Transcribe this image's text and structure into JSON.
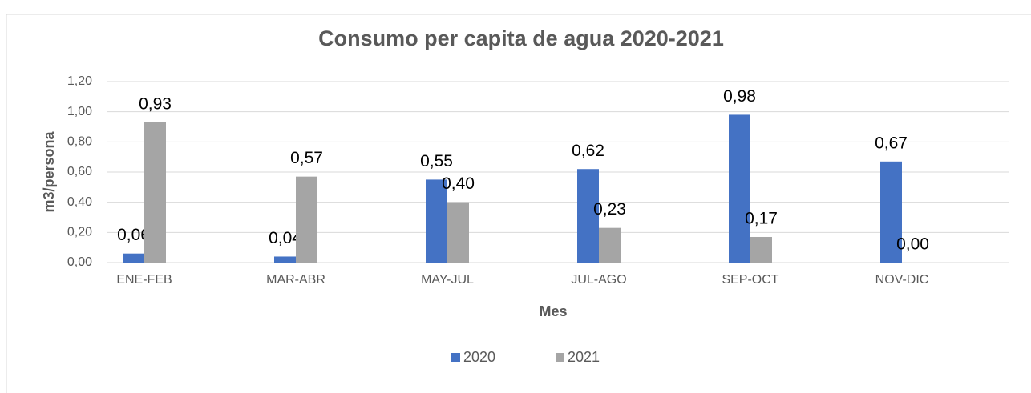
{
  "chart_data": {
    "type": "bar",
    "title": "Consumo per capita de agua 2020-2021",
    "x_label": "Mes",
    "y_label": "m3/persona",
    "categories": [
      "ENE-FEB",
      "MAR-ABR",
      "MAY-JUL",
      "JUL-AGO",
      "SEP-OCT",
      "NOV-DIC"
    ],
    "series": [
      {
        "name": "2020",
        "color": "#4472c4",
        "values": [
          0.06,
          0.04,
          0.55,
          0.62,
          0.98,
          0.67
        ],
        "value_labels": [
          "0,06",
          "0,04",
          "0,55",
          "0,62",
          "0,98",
          "0,67"
        ]
      },
      {
        "name": "2021",
        "color": "#a5a5a5",
        "values": [
          0.93,
          0.57,
          0.4,
          0.23,
          0.17,
          0.0
        ],
        "value_labels": [
          "0,93",
          "0,57",
          "0,40",
          "0,23",
          "0,17",
          "0,00"
        ]
      }
    ],
    "ylim": [
      0,
      1.2
    ],
    "yticks": [
      {
        "value": 0,
        "label": "0,00"
      },
      {
        "value": 0.2,
        "label": "0,20"
      },
      {
        "value": 0.4,
        "label": "0,40"
      },
      {
        "value": 0.6,
        "label": "0,60"
      },
      {
        "value": 0.8,
        "label": "0,80"
      },
      {
        "value": 1.0,
        "label": "1,00"
      },
      {
        "value": 1.2,
        "label": "1,20"
      }
    ],
    "grid": true
  }
}
